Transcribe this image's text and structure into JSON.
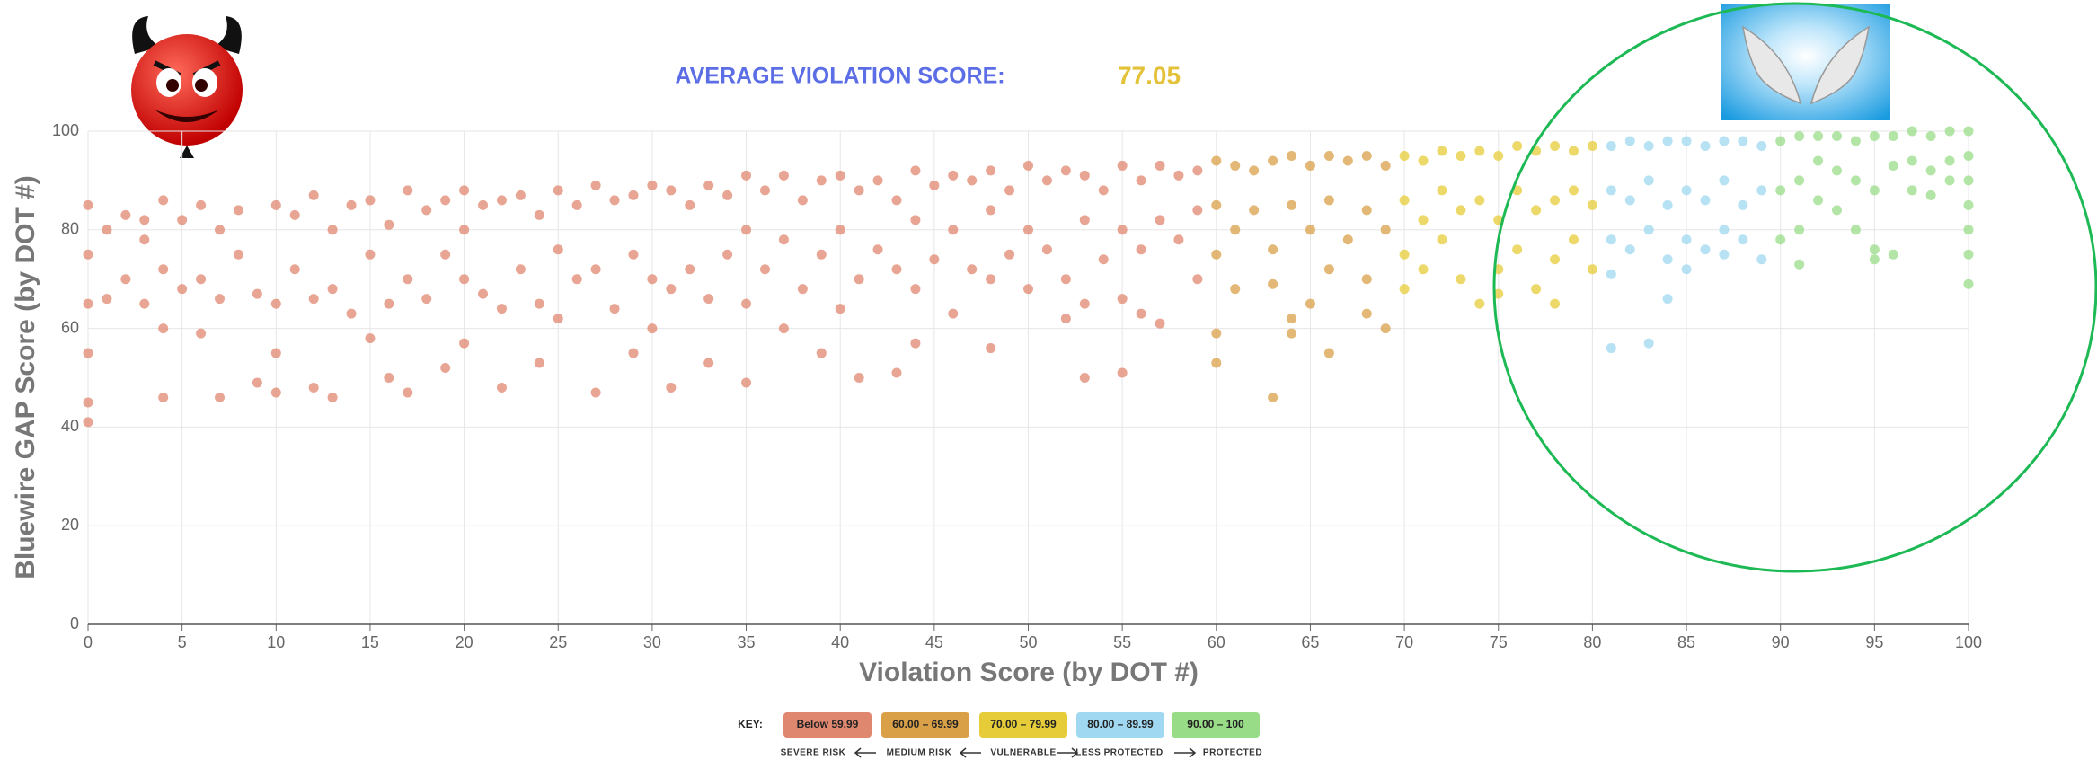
{
  "chart_data": {
    "type": "scatter",
    "title": "AVERAGE VIOLATION  SCORE:",
    "average_score": 77.05,
    "x_label": "Violation Score (by DOT #)",
    "y_label": "Bluewire GAP Score (by DOT #)",
    "xlim": [
      0,
      100
    ],
    "ylim": [
      0,
      100
    ],
    "xticks": [
      0,
      5,
      10,
      15,
      20,
      25,
      30,
      35,
      40,
      45,
      50,
      55,
      60,
      65,
      70,
      75,
      80,
      85,
      90,
      95,
      100
    ],
    "yticks": [
      0,
      20,
      40,
      60,
      80,
      100
    ],
    "grid": true,
    "key_label": "KEY:",
    "key_descriptions": [
      "SEVERE RISK",
      "MEDIUM RISK",
      "VULNERABLE",
      "LESS PROTECTED",
      "PROTECTED"
    ],
    "series": [
      {
        "name": "Below 59.99",
        "color": "#e0876f",
        "x": [
          0,
          0,
          0,
          0,
          0,
          0,
          1,
          1,
          2,
          2,
          3,
          3,
          3,
          4,
          4,
          4,
          4,
          5,
          5,
          6,
          6,
          6,
          7,
          7,
          7,
          8,
          8,
          9,
          9,
          10,
          10,
          10,
          10,
          11,
          11,
          12,
          12,
          12,
          13,
          13,
          13,
          14,
          14,
          15,
          15,
          15,
          16,
          16,
          16,
          17,
          17,
          17,
          18,
          18,
          19,
          19,
          19,
          20,
          20,
          20,
          20,
          21,
          21,
          22,
          22,
          22,
          23,
          23,
          24,
          24,
          24,
          25,
          25,
          25,
          26,
          26,
          27,
          27,
          27,
          28,
          28,
          29,
          29,
          29,
          30,
          30,
          30,
          31,
          31,
          31,
          32,
          32,
          33,
          33,
          33,
          34,
          34,
          35,
          35,
          35,
          35,
          36,
          36,
          37,
          37,
          37,
          38,
          38,
          39,
          39,
          39,
          40,
          40,
          40,
          41,
          41,
          41,
          42,
          42,
          43,
          43,
          43,
          44,
          44,
          44,
          44,
          45,
          45,
          46,
          46,
          46,
          47,
          47,
          48,
          48,
          48,
          48,
          49,
          49,
          50,
          50,
          50,
          51,
          51,
          52,
          52,
          52,
          53,
          53,
          53,
          53,
          54,
          54,
          55,
          55,
          55,
          55,
          56,
          56,
          56,
          57,
          57,
          57,
          58,
          58,
          59,
          59,
          59
        ],
        "values": [
          85,
          75,
          65,
          55,
          45,
          41,
          80,
          66,
          83,
          70,
          78,
          65,
          82,
          86,
          72,
          60,
          46,
          82,
          68,
          85,
          70,
          59,
          80,
          66,
          46,
          84,
          75,
          67,
          49,
          85,
          65,
          55,
          47,
          83,
          72,
          87,
          66,
          48,
          80,
          68,
          46,
          85,
          63,
          86,
          75,
          58,
          81,
          65,
          50,
          88,
          70,
          47,
          84,
          66,
          86,
          75,
          52,
          88,
          80,
          70,
          57,
          85,
          67,
          86,
          64,
          48,
          87,
          72,
          83,
          65,
          53,
          88,
          76,
          62,
          85,
          70,
          89,
          72,
          47,
          86,
          64,
          87,
          75,
          55,
          89,
          70,
          60,
          88,
          68,
          48,
          85,
          72,
          89,
          66,
          53,
          87,
          75,
          91,
          80,
          65,
          49,
          88,
          72,
          91,
          78,
          60,
          86,
          68,
          90,
          75,
          55,
          91,
          80,
          64,
          88,
          70,
          50,
          90,
          76,
          86,
          72,
          51,
          92,
          82,
          68,
          57,
          89,
          74,
          91,
          80,
          63,
          90,
          72,
          92,
          84,
          70,
          56,
          88,
          75,
          93,
          80,
          68,
          90,
          76,
          92,
          70,
          62,
          91,
          82,
          65,
          50,
          88,
          74,
          93,
          80,
          66,
          51,
          90,
          76,
          63,
          93,
          82,
          61,
          91,
          78,
          92,
          84,
          70
        ]
      },
      {
        "name": "60.00 – 69.99",
        "color": "#daa048",
        "x": [
          60,
          60,
          60,
          60,
          60,
          61,
          61,
          61,
          62,
          62,
          63,
          63,
          63,
          63,
          64,
          64,
          64,
          64,
          65,
          65,
          65,
          66,
          66,
          66,
          66,
          67,
          67,
          68,
          68,
          68,
          68,
          69,
          69,
          69
        ],
        "values": [
          94,
          85,
          75,
          59,
          53,
          93,
          80,
          68,
          92,
          84,
          94,
          76,
          69,
          46,
          95,
          85,
          62,
          59,
          93,
          80,
          65,
          95,
          86,
          72,
          55,
          94,
          78,
          95,
          84,
          70,
          63,
          93,
          80,
          60
        ]
      },
      {
        "name": "70.00 – 79.99",
        "color": "#e6cc38",
        "x": [
          70,
          70,
          70,
          70,
          71,
          71,
          71,
          72,
          72,
          72,
          73,
          73,
          73,
          74,
          74,
          74,
          75,
          75,
          75,
          75,
          76,
          76,
          76,
          77,
          77,
          77,
          78,
          78,
          78,
          78,
          79,
          79,
          79,
          80,
          80,
          80
        ],
        "values": [
          95,
          86,
          75,
          68,
          94,
          82,
          72,
          96,
          88,
          78,
          95,
          84,
          70,
          96,
          86,
          65,
          95,
          82,
          72,
          67,
          97,
          88,
          76,
          96,
          84,
          68,
          97,
          86,
          74,
          65,
          96,
          88,
          78,
          97,
          85,
          72
        ]
      },
      {
        "name": "80.00 – 89.99",
        "color": "#9fd8f0",
        "x": [
          81,
          81,
          81,
          81,
          81,
          82,
          82,
          82,
          83,
          83,
          83,
          83,
          84,
          84,
          84,
          84,
          85,
          85,
          85,
          85,
          86,
          86,
          86,
          87,
          87,
          87,
          87,
          88,
          88,
          88,
          89,
          89,
          89
        ],
        "values": [
          97,
          88,
          78,
          71,
          56,
          98,
          86,
          76,
          97,
          90,
          80,
          57,
          98,
          85,
          74,
          66,
          98,
          88,
          78,
          72,
          97,
          86,
          76,
          98,
          90,
          80,
          75,
          98,
          85,
          78,
          97,
          88,
          74
        ]
      },
      {
        "name": "90.00 – 100",
        "color": "#98dc88",
        "x": [
          90,
          90,
          90,
          91,
          91,
          91,
          91,
          92,
          92,
          92,
          93,
          93,
          93,
          94,
          94,
          94,
          95,
          95,
          95,
          95,
          96,
          96,
          96,
          97,
          97,
          97,
          98,
          98,
          98,
          99,
          99,
          99,
          100,
          100,
          100,
          100,
          100,
          100,
          100
        ],
        "values": [
          98,
          88,
          78,
          99,
          90,
          80,
          73,
          99,
          94,
          86,
          99,
          92,
          84,
          98,
          90,
          80,
          99,
          88,
          76,
          74,
          99,
          93,
          75,
          100,
          94,
          88,
          99,
          92,
          87,
          100,
          94,
          90,
          100,
          95,
          90,
          85,
          80,
          75,
          69
        ]
      }
    ]
  }
}
